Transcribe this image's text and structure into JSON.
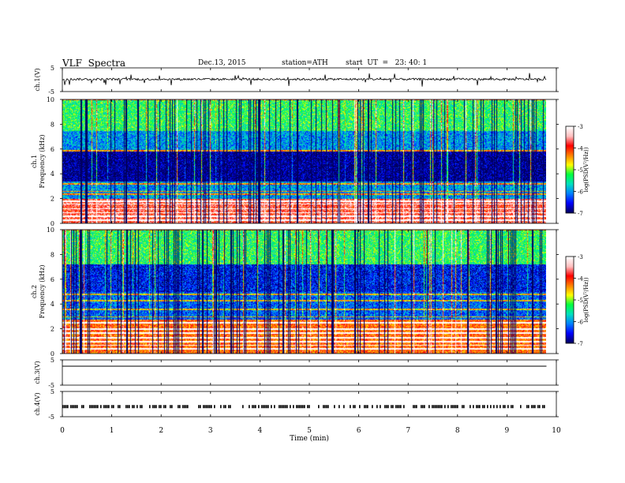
{
  "header": {
    "title": "VLF  Spectra",
    "date": "Dec.13, 2015",
    "station": "station=ATH",
    "start": "start  UT  =   23: 40: 1"
  },
  "colors": {
    "background": "#ffffff",
    "axis": "#000000",
    "colormap": [
      "#000060",
      "#0000ff",
      "#0080ff",
      "#00e0c0",
      "#00ff40",
      "#ffff00",
      "#ff8000",
      "#ff0000",
      "#ffc0c0",
      "#ffffff"
    ]
  },
  "chart_data": [
    {
      "type": "line",
      "name": "ch1-waveform",
      "ylabel": "ch.1(V)",
      "ylim": [
        -5,
        5
      ],
      "yticks": [
        "5",
        "-5"
      ],
      "x_range": [
        0,
        9.8
      ],
      "baseline_v": 0.2,
      "description_level": "nearly flat trace with frequent small spikes"
    },
    {
      "type": "heatmap",
      "name": "ch1-spectrogram",
      "ylabel": "ch.1\nFrequency  (kHz)",
      "ylabel_lines": [
        "ch.1",
        "Frequency  (kHz)"
      ],
      "ylim": [
        0,
        10
      ],
      "yticks": [
        "0",
        "2",
        "4",
        "6",
        "8",
        "10"
      ],
      "x_range": [
        0,
        9.8
      ],
      "colorbar": {
        "label": "log(PSD(V²/Hz))",
        "range": [
          -7,
          -3
        ],
        "ticks": [
          "-3",
          "-4",
          "-5",
          "-6",
          "-7"
        ]
      },
      "bands": [
        {
          "from": 0,
          "to": 2,
          "level": -3.8
        },
        {
          "from": 2,
          "to": 3.4,
          "level": -6.0
        },
        {
          "from": 3.4,
          "to": 5.8,
          "level": -6.9
        },
        {
          "from": 5.8,
          "to": 7.5,
          "level": -6.0
        },
        {
          "from": 7.5,
          "to": 10,
          "level": -5.3
        }
      ],
      "lines_khz": [
        0.3,
        0.6,
        0.9,
        1.2,
        1.6,
        1.8,
        2.4,
        2.6,
        3.2,
        5.9
      ],
      "spike_density": "high"
    },
    {
      "type": "heatmap",
      "name": "ch2-spectrogram",
      "ylabel_lines": [
        "ch.2",
        "Frequency  (kHz)"
      ],
      "ylim": [
        0,
        10
      ],
      "yticks": [
        "0",
        "2",
        "4",
        "6",
        "8",
        "10"
      ],
      "x_range": [
        0,
        9.8
      ],
      "colorbar": {
        "label": "log(PSD(V²/Hz))",
        "range": [
          -7,
          -3
        ],
        "ticks": [
          "-3",
          "-4",
          "-5",
          "-6",
          "-7"
        ]
      },
      "bands": [
        {
          "from": 0,
          "to": 2.8,
          "level": -4.2
        },
        {
          "from": 2.8,
          "to": 5,
          "level": -6.2
        },
        {
          "from": 5,
          "to": 7.2,
          "level": -6.5
        },
        {
          "from": 7.2,
          "to": 10,
          "level": -5.3
        }
      ],
      "lines_khz": [
        0.4,
        0.7,
        1.0,
        1.3,
        1.7,
        2.0,
        2.5,
        3.0,
        3.6,
        4.3,
        4.8
      ],
      "spike_density": "high"
    },
    {
      "type": "line",
      "name": "ch3-waveform",
      "ylabel": "ch.3(V)",
      "ylim": [
        -5,
        5
      ],
      "yticks": [
        "5",
        "-5"
      ],
      "x_range": [
        0,
        9.8
      ],
      "value_v": 0.0
    },
    {
      "type": "scatter",
      "name": "ch4-waveform",
      "ylabel": "ch.4(V)",
      "ylim": [
        -5,
        5
      ],
      "yticks": [
        "5",
        "-5"
      ],
      "x_range": [
        0,
        9.8
      ],
      "value_v": -1.0
    }
  ],
  "x_axis": {
    "label": "Time  (min)",
    "range": [
      0,
      10
    ],
    "ticks": [
      "0",
      "1",
      "2",
      "3",
      "4",
      "5",
      "6",
      "7",
      "8",
      "9",
      "10"
    ]
  }
}
